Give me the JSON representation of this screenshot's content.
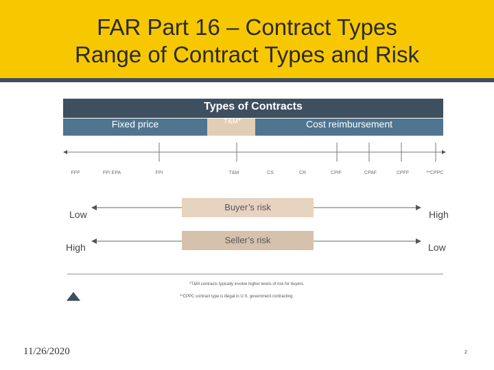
{
  "slide": {
    "title_line1": "FAR Part 16 – Contract Types",
    "title_line2": "Range of Contract Types and Risk",
    "date": "11/26/2020",
    "page_number": "2"
  },
  "diagram": {
    "header": "Types of Contracts",
    "categories": {
      "fixed": "Fixed price",
      "tm": "T&M*",
      "cost": "Cost reimbursement"
    },
    "ticks": [
      "FFP",
      "FP/ EPA",
      "FPI",
      "T&M",
      "CS",
      "CR",
      "CPIF",
      "CPAF",
      "CPFF",
      "**CPPC"
    ],
    "buyer_risk": {
      "label": "Buyer’s risk",
      "left": "Low",
      "right": "High"
    },
    "seller_risk": {
      "label": "Seller’s risk",
      "left": "High",
      "right": "Low"
    },
    "notes": [
      "*T&M contracts typically involve higher levels of risk for buyers.",
      "**CPPC contract type is illegal in U.S. government contracting"
    ]
  },
  "colors": {
    "title_band": "#f7c800",
    "dark_navy": "#3e4f5f",
    "steel_blue": "#4f7590",
    "tan": "#e2cdb5"
  }
}
